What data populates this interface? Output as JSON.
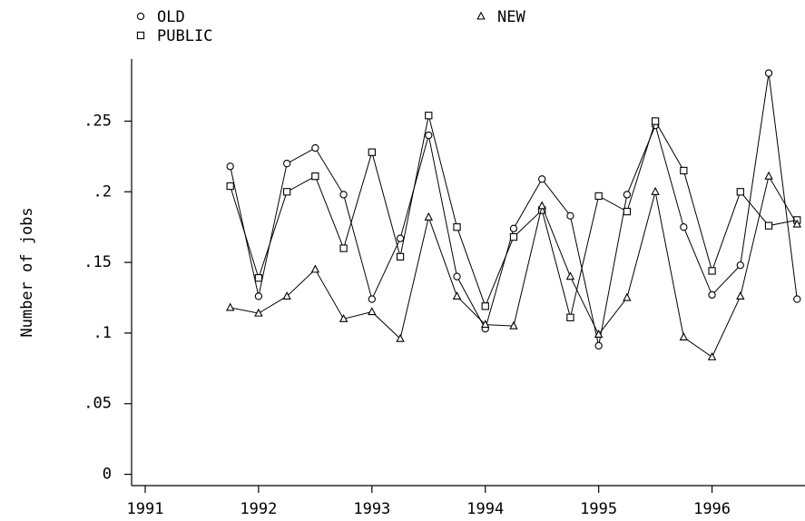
{
  "chart_data": {
    "type": "line",
    "y_label": "Number of jobs",
    "x": [
      1991.75,
      1992,
      1992.25,
      1992.5,
      1992.75,
      1993,
      1993.25,
      1993.5,
      1993.75,
      1994,
      1994.25,
      1994.5,
      1994.75,
      1995,
      1995.25,
      1995.5,
      1995.75,
      1996,
      1996.25,
      1996.5,
      1996.75
    ],
    "series": [
      {
        "name": "OLD",
        "color": "#000000",
        "marker": "circle",
        "values": [
          0.218,
          0.126,
          0.22,
          0.231,
          0.198,
          0.124,
          0.167,
          0.24,
          0.14,
          0.103,
          0.174,
          0.209,
          0.183,
          0.091,
          0.198,
          0.247,
          0.175,
          0.127,
          0.148,
          0.284,
          0.124
        ]
      },
      {
        "name": "PUBLIC",
        "color": "#000000",
        "marker": "square",
        "values": [
          0.204,
          0.139,
          0.2,
          0.211,
          0.16,
          0.228,
          0.154,
          0.254,
          0.175,
          0.119,
          0.168,
          0.187,
          0.111,
          0.197,
          0.186,
          0.25,
          0.215,
          0.144,
          0.2,
          0.176,
          0.18
        ]
      },
      {
        "name": "NEW",
        "color": "#000000",
        "marker": "triangle",
        "values": [
          0.118,
          0.114,
          0.126,
          0.145,
          0.11,
          0.115,
          0.096,
          0.182,
          0.126,
          0.106,
          0.105,
          0.19,
          0.14,
          0.099,
          0.125,
          0.2,
          0.097,
          0.083,
          0.126,
          0.211,
          0.177
        ]
      }
    ],
    "xlim": [
      1990.88,
      1996.82
    ],
    "xticks": [
      1991,
      1992,
      1993,
      1994,
      1995,
      1996
    ],
    "ylim": [
      -0.008,
      0.294
    ],
    "yticks": [
      0,
      {
        "value": 0.05,
        "label": ".05"
      },
      {
        "value": 0.1,
        "label": ".1"
      },
      {
        "value": 0.15,
        "label": ".15"
      },
      {
        "value": 0.2,
        "label": ".2"
      },
      {
        "value": 0.25,
        "label": ".25"
      }
    ],
    "grid": false
  }
}
